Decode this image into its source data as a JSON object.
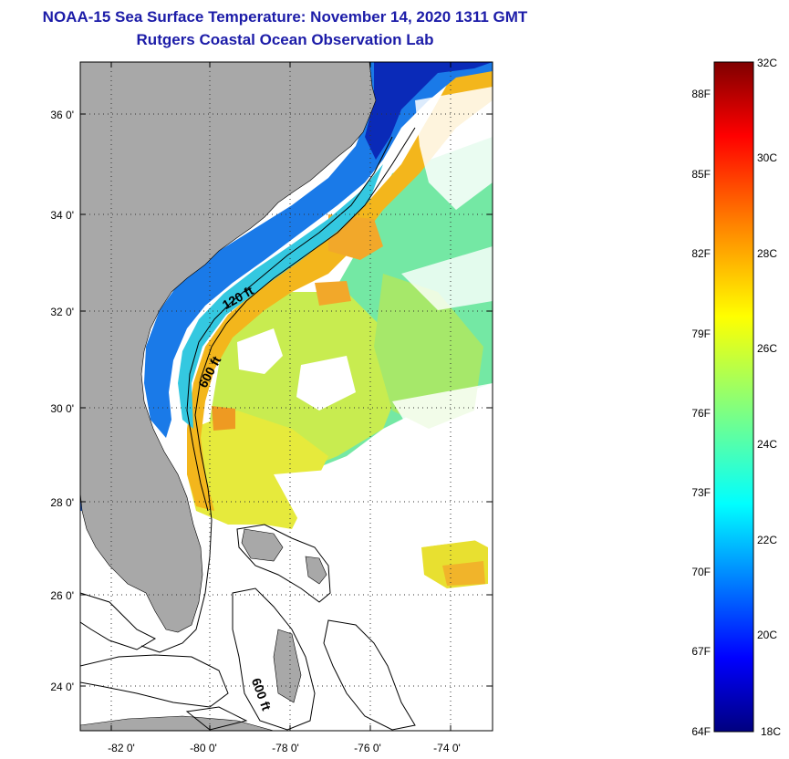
{
  "header": {
    "title": "NOAA-15 Sea Surface Temperature:  November 14, 2020 1311 GMT",
    "subtitle": "Rutgers Coastal Ocean Observation Lab"
  },
  "map": {
    "lat_ticks": [
      "36 0'",
      "34 0'",
      "32 0'",
      "30 0'",
      "28 0'",
      "26 0'",
      "24 0'"
    ],
    "lon_ticks": [
      "-82 0'",
      "-80 0'",
      "-78 0'",
      "-76 0'",
      "-74 0'"
    ],
    "lat_range": [
      23,
      37.1
    ],
    "lon_range": [
      -83,
      -73
    ],
    "contours": [
      "120 ft",
      "600 ft",
      "600 ft"
    ],
    "land_color": "#a8a8a8",
    "grid": "dotted"
  },
  "colorbar": {
    "min_c": 18,
    "max_c": 32,
    "celsius_labels": [
      "32C",
      "30C",
      "28C",
      "26C",
      "24C",
      "22C",
      "20C",
      "18C"
    ],
    "fahrenheit_labels": [
      "88F",
      "85F",
      "82F",
      "79F",
      "76F",
      "73F",
      "70F",
      "67F",
      "64F"
    ],
    "colors": [
      "#00007f",
      "#0000ff",
      "#0080ff",
      "#00ffff",
      "#80ff80",
      "#ffff00",
      "#ff8000",
      "#ff0000",
      "#7f0000"
    ]
  }
}
